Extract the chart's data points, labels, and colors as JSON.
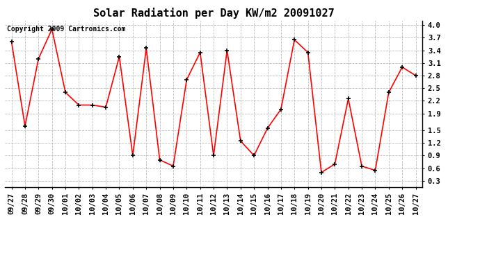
{
  "title": "Solar Radiation per Day KW/m2 20091027",
  "copyright": "Copyright 2009 Cartronics.com",
  "labels": [
    "09/27",
    "09/28",
    "09/29",
    "09/30",
    "10/01",
    "10/02",
    "10/03",
    "10/04",
    "10/05",
    "10/06",
    "10/07",
    "10/08",
    "10/09",
    "10/10",
    "10/11",
    "10/12",
    "10/13",
    "10/14",
    "10/15",
    "10/16",
    "10/17",
    "10/18",
    "10/19",
    "10/20",
    "10/21",
    "10/22",
    "10/23",
    "10/24",
    "10/25",
    "10/26",
    "10/27"
  ],
  "values": [
    3.6,
    1.6,
    3.2,
    3.9,
    2.4,
    2.1,
    2.1,
    2.05,
    3.25,
    0.9,
    3.45,
    0.8,
    0.65,
    2.7,
    3.35,
    0.9,
    3.4,
    1.25,
    0.9,
    1.55,
    2.0,
    3.65,
    3.35,
    0.5,
    0.7,
    2.25,
    0.65,
    0.55,
    2.4,
    3.0,
    2.8
  ],
  "line_color": "#ff0000",
  "marker": "+",
  "marker_color": "#000000",
  "bg_color": "#ffffff",
  "grid_color": "#bbbbbb",
  "ylim": [
    0.15,
    4.1
  ],
  "yticks": [
    0.3,
    0.6,
    0.9,
    1.2,
    1.5,
    1.9,
    2.2,
    2.5,
    2.8,
    3.1,
    3.4,
    3.7,
    4.0
  ],
  "title_fontsize": 11,
  "copyright_fontsize": 7,
  "tick_fontsize": 7.5
}
